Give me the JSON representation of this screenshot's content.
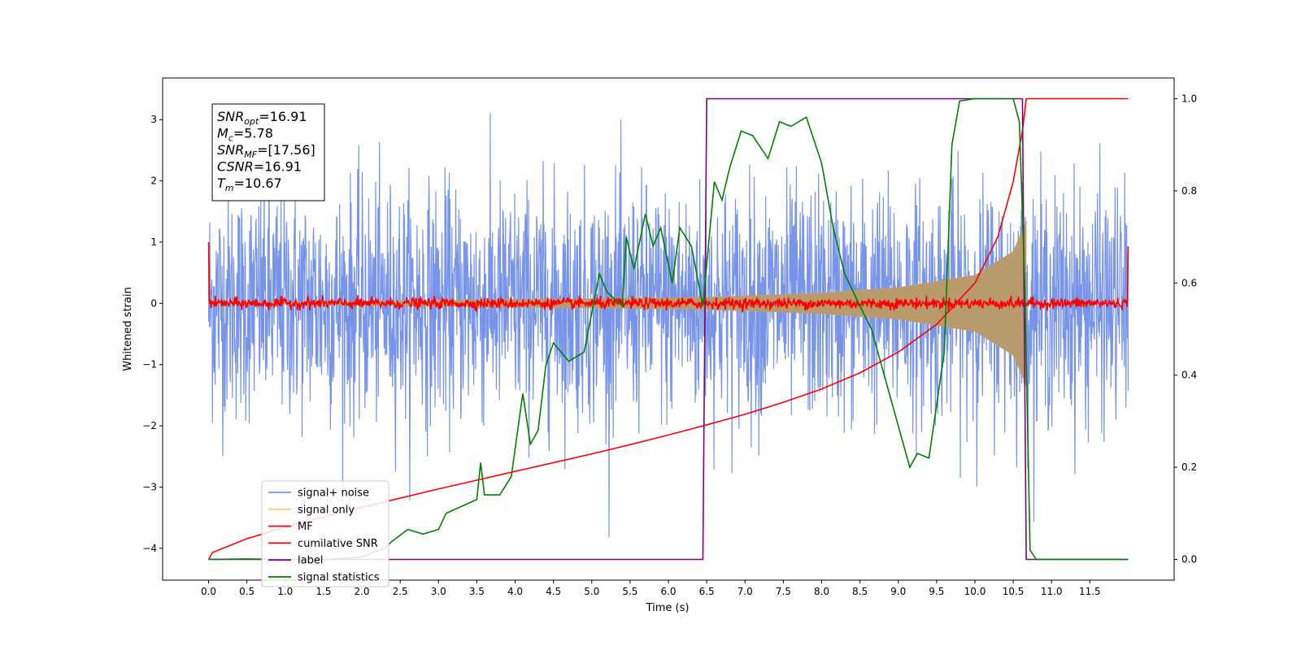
{
  "chart_data": {
    "type": "line",
    "xlabel": "Time (s)",
    "ylabel": "Whitened strain",
    "xlim": [
      -0.6,
      12.6
    ],
    "ylim": [
      -4.52,
      3.68
    ],
    "y2lim": [
      -0.045,
      1.045
    ],
    "xticks": [
      0.0,
      0.5,
      1.0,
      1.5,
      2.0,
      2.5,
      3.0,
      3.5,
      4.0,
      4.5,
      5.0,
      5.5,
      6.0,
      6.5,
      7.0,
      7.5,
      8.0,
      8.5,
      9.0,
      9.5,
      10.0,
      10.5,
      11.0,
      11.5
    ],
    "xtick_labels": [
      "0.0",
      "0.5",
      "1.0",
      "1.5",
      "2.0",
      "2.5",
      "3.0",
      "3.5",
      "4.0",
      "4.5",
      "5.0",
      "5.5",
      "6.0",
      "6.5",
      "7.0",
      "7.5",
      "8.0",
      "8.5",
      "9.0",
      "9.5",
      "10.0",
      "10.5",
      "11.0",
      "11.5"
    ],
    "yticks": [
      3,
      2,
      1,
      0,
      -1,
      -2,
      -3,
      -4
    ],
    "ytick_labels": [
      "3",
      "2",
      "1",
      "0",
      "−1",
      "−2",
      "−3",
      "−4"
    ],
    "y2ticks": [
      1.0,
      0.8,
      0.6,
      0.4,
      0.2,
      0.0
    ],
    "y2tick_labels": [
      "1.0",
      "0.8",
      "0.6",
      "0.4",
      "0.2",
      "0.0"
    ],
    "legend_position": "lower-left",
    "grid": false,
    "annotation": {
      "lines": [
        {
          "sym": "SNR",
          "sub": "opt",
          "value": "=16.91"
        },
        {
          "sym": "M",
          "sub": "c",
          "value": "=5.78"
        },
        {
          "sym": "SNR",
          "sub": "MF",
          "value": "=[17.56]"
        },
        {
          "sym": "CSNR",
          "sub": "",
          "value": "=16.91"
        },
        {
          "sym": "T",
          "sub": "m",
          "value": "=10.67"
        }
      ]
    },
    "series": [
      {
        "name": "signal+ noise",
        "color": "#7794e8",
        "axis": "left",
        "kind": "noise",
        "x_range": [
          0.0,
          12.0
        ],
        "envelope": 1.7,
        "max": 3.33,
        "min": -4.15
      },
      {
        "name": "signal only",
        "color": "#ffd27f",
        "axis": "left",
        "kind": "chirp",
        "x_range": [
          0.0,
          10.67
        ],
        "envelope_points": [
          [
            0.0,
            0.0
          ],
          [
            6.5,
            0.1
          ],
          [
            8.0,
            0.17
          ],
          [
            9.0,
            0.26
          ],
          [
            10.0,
            0.46
          ],
          [
            10.5,
            0.85
          ],
          [
            10.67,
            1.35
          ]
        ]
      },
      {
        "name": "MF",
        "color": "#ff0000",
        "axis": "left",
        "kind": "mf",
        "x_range": [
          0.0,
          12.0
        ],
        "start": 1.0,
        "end": 0.93
      },
      {
        "name": "cumilative SNR",
        "color": "#ff0000",
        "axis": "right",
        "points": [
          [
            0.0,
            0.0
          ],
          [
            0.05,
            0.015
          ],
          [
            0.5,
            0.045
          ],
          [
            1.0,
            0.07
          ],
          [
            1.5,
            0.092
          ],
          [
            2.0,
            0.113
          ],
          [
            2.5,
            0.133
          ],
          [
            3.0,
            0.153
          ],
          [
            3.5,
            0.172
          ],
          [
            4.0,
            0.191
          ],
          [
            4.5,
            0.21
          ],
          [
            5.0,
            0.229
          ],
          [
            5.5,
            0.249
          ],
          [
            6.0,
            0.27
          ],
          [
            6.5,
            0.292
          ],
          [
            7.0,
            0.315
          ],
          [
            7.5,
            0.341
          ],
          [
            8.0,
            0.37
          ],
          [
            8.5,
            0.405
          ],
          [
            9.0,
            0.45
          ],
          [
            9.5,
            0.51
          ],
          [
            10.0,
            0.6
          ],
          [
            10.3,
            0.7
          ],
          [
            10.5,
            0.82
          ],
          [
            10.62,
            0.93
          ],
          [
            10.67,
            1.0
          ],
          [
            12.0,
            1.0
          ]
        ]
      },
      {
        "name": "label",
        "color": "#800080",
        "axis": "right",
        "points": [
          [
            0.0,
            0.0
          ],
          [
            6.45,
            0.0
          ],
          [
            6.5,
            1.0
          ],
          [
            10.62,
            1.0
          ],
          [
            10.67,
            0.0
          ],
          [
            12.0,
            0.0
          ]
        ]
      },
      {
        "name": "signal statistics",
        "color": "#008000",
        "axis": "right",
        "points": [
          [
            0.0,
            0.0
          ],
          [
            0.5,
            0.001
          ],
          [
            1.0,
            0.0
          ],
          [
            1.5,
            0.0
          ],
          [
            2.0,
            0.005
          ],
          [
            2.3,
            0.025
          ],
          [
            2.4,
            0.04
          ],
          [
            2.6,
            0.065
          ],
          [
            2.7,
            0.06
          ],
          [
            2.8,
            0.055
          ],
          [
            3.0,
            0.065
          ],
          [
            3.1,
            0.1
          ],
          [
            3.3,
            0.115
          ],
          [
            3.5,
            0.13
          ],
          [
            3.55,
            0.21
          ],
          [
            3.6,
            0.14
          ],
          [
            3.8,
            0.14
          ],
          [
            3.95,
            0.18
          ],
          [
            4.1,
            0.36
          ],
          [
            4.2,
            0.25
          ],
          [
            4.3,
            0.28
          ],
          [
            4.4,
            0.42
          ],
          [
            4.5,
            0.47
          ],
          [
            4.7,
            0.43
          ],
          [
            4.9,
            0.45
          ],
          [
            5.1,
            0.62
          ],
          [
            5.2,
            0.58
          ],
          [
            5.4,
            0.55
          ],
          [
            5.45,
            0.7
          ],
          [
            5.55,
            0.63
          ],
          [
            5.7,
            0.75
          ],
          [
            5.8,
            0.68
          ],
          [
            5.9,
            0.72
          ],
          [
            6.05,
            0.6
          ],
          [
            6.15,
            0.72
          ],
          [
            6.3,
            0.68
          ],
          [
            6.45,
            0.55
          ],
          [
            6.6,
            0.82
          ],
          [
            6.7,
            0.78
          ],
          [
            6.8,
            0.85
          ],
          [
            6.95,
            0.93
          ],
          [
            7.1,
            0.92
          ],
          [
            7.3,
            0.87
          ],
          [
            7.45,
            0.95
          ],
          [
            7.6,
            0.94
          ],
          [
            7.8,
            0.96
          ],
          [
            8.0,
            0.86
          ],
          [
            8.15,
            0.72
          ],
          [
            8.3,
            0.62
          ],
          [
            8.5,
            0.55
          ],
          [
            8.65,
            0.5
          ],
          [
            8.9,
            0.35
          ],
          [
            9.05,
            0.26
          ],
          [
            9.15,
            0.2
          ],
          [
            9.25,
            0.23
          ],
          [
            9.4,
            0.22
          ],
          [
            9.6,
            0.45
          ],
          [
            9.7,
            0.9
          ],
          [
            9.8,
            0.995
          ],
          [
            10.0,
            1.0
          ],
          [
            10.5,
            1.0
          ],
          [
            10.58,
            0.95
          ],
          [
            10.65,
            0.6
          ],
          [
            10.72,
            0.02
          ],
          [
            10.8,
            0.0
          ],
          [
            12.0,
            0.0
          ]
        ]
      }
    ]
  }
}
